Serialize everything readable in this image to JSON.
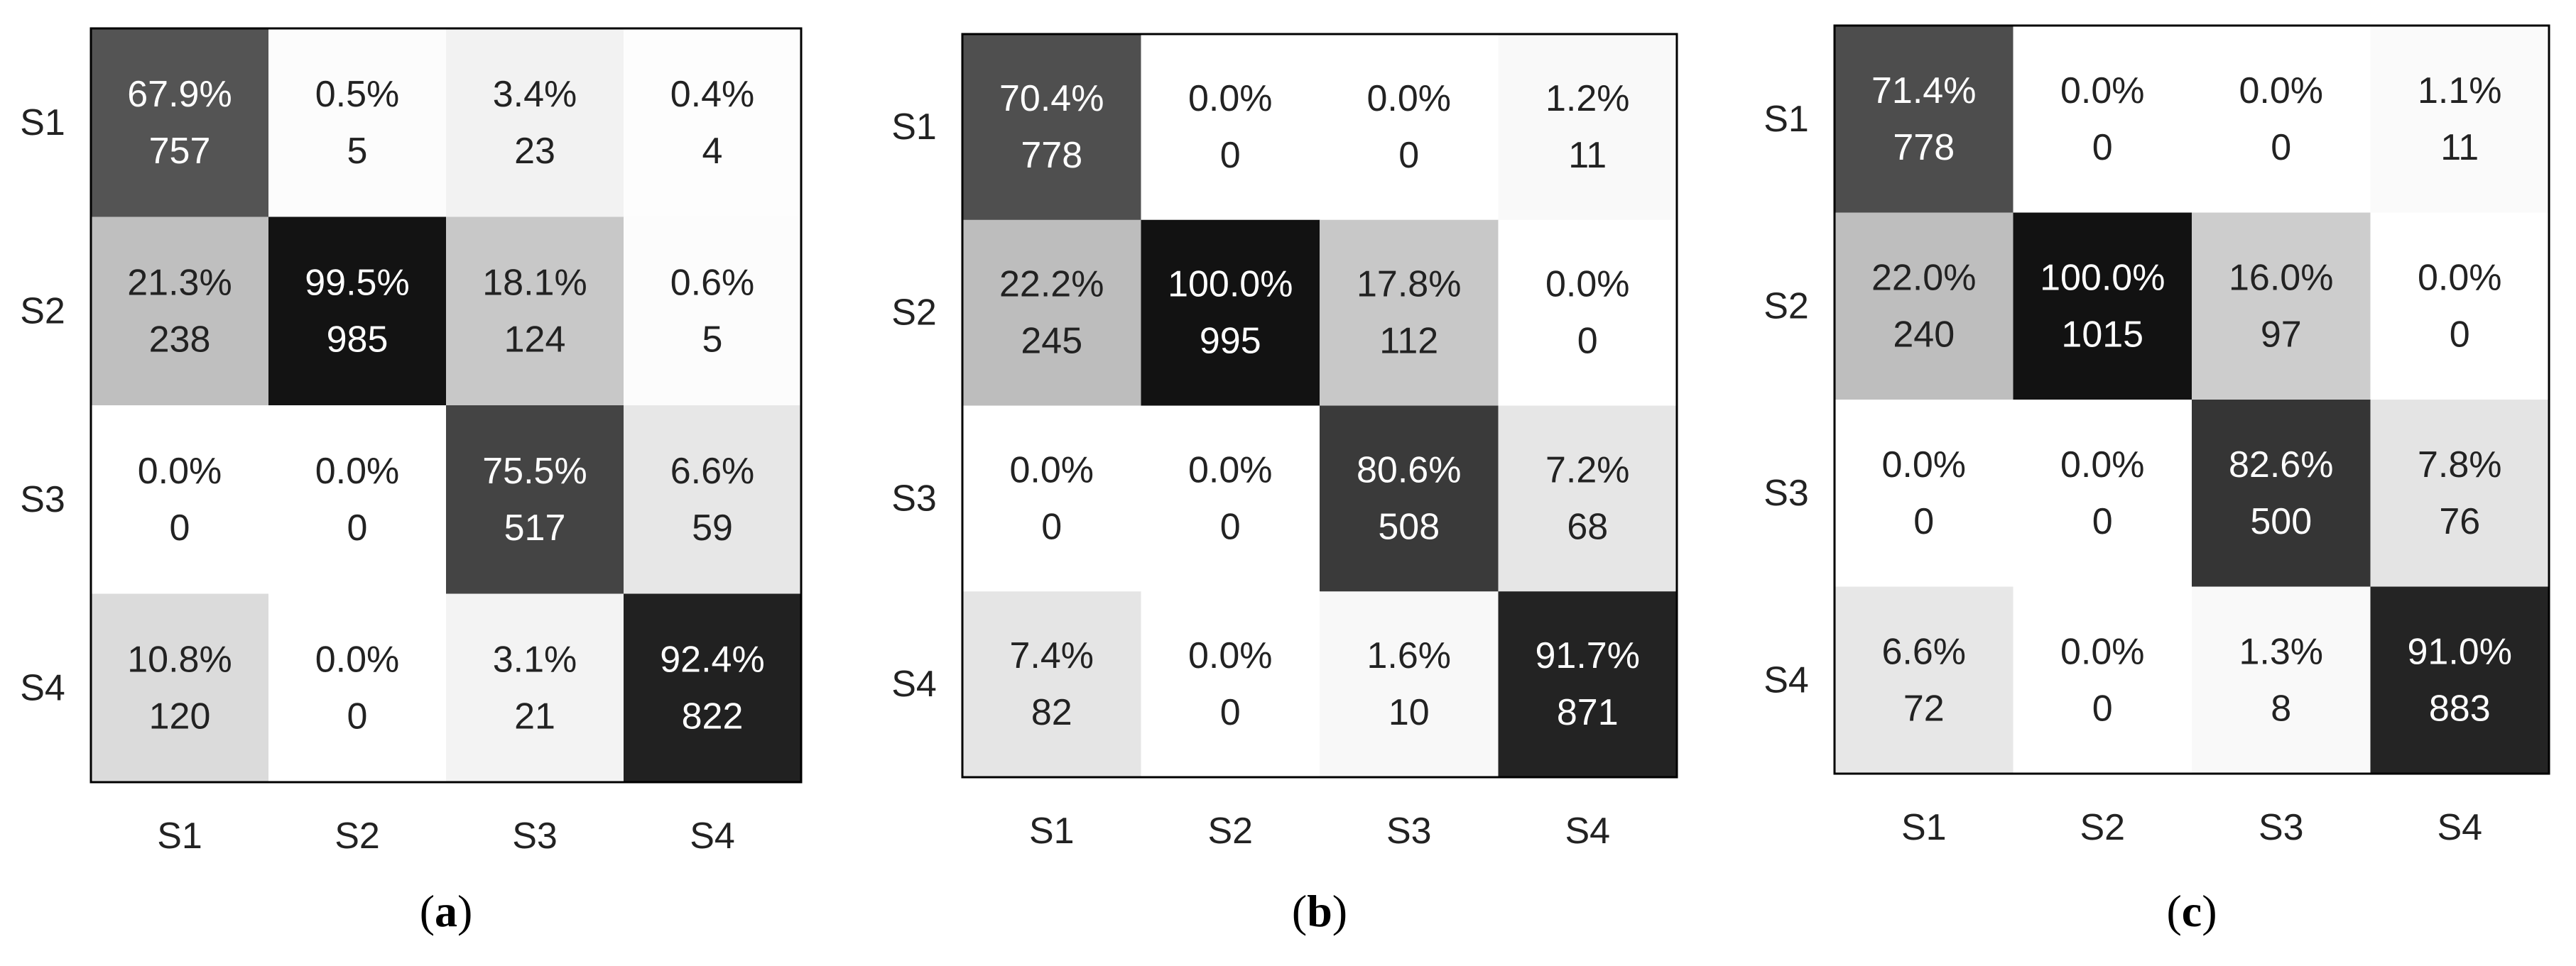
{
  "chart_data": [
    {
      "type": "heatmap",
      "caption_letter": "a",
      "x_categories": [
        "S1",
        "S2",
        "S3",
        "S4"
      ],
      "y_categories": [
        "S1",
        "S2",
        "S3",
        "S4"
      ],
      "percent_labels": [
        [
          "67.9%",
          "0.5%",
          "3.4%",
          "0.4%"
        ],
        [
          "21.3%",
          "99.5%",
          "18.1%",
          "0.6%"
        ],
        [
          "0.0%",
          "0.0%",
          "75.5%",
          "6.6%"
        ],
        [
          "10.8%",
          "0.0%",
          "3.1%",
          "92.4%"
        ]
      ],
      "percent": [
        [
          67.9,
          0.5,
          3.4,
          0.4
        ],
        [
          21.3,
          99.5,
          18.1,
          0.6
        ],
        [
          0.0,
          0.0,
          75.5,
          6.6
        ],
        [
          10.8,
          0.0,
          3.1,
          92.4
        ]
      ],
      "counts": [
        [
          757,
          5,
          23,
          4
        ],
        [
          238,
          985,
          124,
          5
        ],
        [
          0,
          0,
          517,
          59
        ],
        [
          120,
          0,
          21,
          822
        ]
      ],
      "colormap": "grayscale",
      "grid": false
    },
    {
      "type": "heatmap",
      "caption_letter": "b",
      "x_categories": [
        "S1",
        "S2",
        "S3",
        "S4"
      ],
      "y_categories": [
        "S1",
        "S2",
        "S3",
        "S4"
      ],
      "percent_labels": [
        [
          "70.4%",
          "0.0%",
          "0.0%",
          "1.2%"
        ],
        [
          "22.2%",
          "100.0%",
          "17.8%",
          "0.0%"
        ],
        [
          "0.0%",
          "0.0%",
          "80.6%",
          "7.2%"
        ],
        [
          "7.4%",
          "0.0%",
          "1.6%",
          "91.7%"
        ]
      ],
      "percent": [
        [
          70.4,
          0.0,
          0.0,
          1.2
        ],
        [
          22.2,
          100.0,
          17.8,
          0.0
        ],
        [
          0.0,
          0.0,
          80.6,
          7.2
        ],
        [
          7.4,
          0.0,
          1.6,
          91.7
        ]
      ],
      "counts": [
        [
          778,
          0,
          0,
          11
        ],
        [
          245,
          995,
          112,
          0
        ],
        [
          0,
          0,
          508,
          68
        ],
        [
          82,
          0,
          10,
          871
        ]
      ],
      "colormap": "grayscale",
      "grid": false
    },
    {
      "type": "heatmap",
      "caption_letter": "c",
      "x_categories": [
        "S1",
        "S2",
        "S3",
        "S4"
      ],
      "y_categories": [
        "S1",
        "S2",
        "S3",
        "S4"
      ],
      "percent_labels": [
        [
          "71.4%",
          "0.0%",
          "0.0%",
          "1.1%"
        ],
        [
          "22.0%",
          "100.0%",
          "16.0%",
          "0.0%"
        ],
        [
          "0.0%",
          "0.0%",
          "82.6%",
          "7.8%"
        ],
        [
          "6.6%",
          "0.0%",
          "1.3%",
          "91.0%"
        ]
      ],
      "percent": [
        [
          71.4,
          0.0,
          0.0,
          1.1
        ],
        [
          22.0,
          100.0,
          16.0,
          0.0
        ],
        [
          0.0,
          0.0,
          82.6,
          7.8
        ],
        [
          6.6,
          0.0,
          1.3,
          91.0
        ]
      ],
      "counts": [
        [
          778,
          0,
          0,
          11
        ],
        [
          240,
          1015,
          97,
          0
        ],
        [
          0,
          0,
          500,
          76
        ],
        [
          72,
          0,
          8,
          883
        ]
      ],
      "colormap": "grayscale",
      "grid": false
    }
  ]
}
